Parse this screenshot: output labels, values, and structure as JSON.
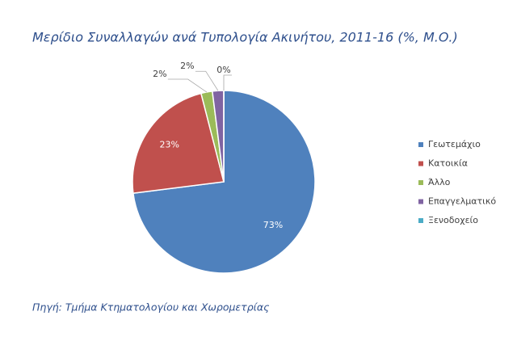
{
  "chart_data": {
    "type": "pie",
    "title": "Μερίδιο Συναλλαγών ανά Τυπολογία Ακινήτου, 2011-16 (%, Μ.Ο.)",
    "categories": [
      "Γεωτεμάχιο",
      "Κατοικία",
      "Άλλο",
      "Επαγγελματικό",
      "Ξενοδοχείο"
    ],
    "values": [
      73,
      23,
      2,
      2,
      0
    ],
    "value_labels": [
      "73%",
      "23%",
      "2%",
      "2%",
      "0%"
    ],
    "colors": [
      "#4f81bd",
      "#c0504d",
      "#9bbb59",
      "#8064a2",
      "#4bacc6"
    ],
    "legend": "right",
    "source": "Πηγή: Τμήμα Κτηματολογίου και Χωρομετρίας"
  }
}
